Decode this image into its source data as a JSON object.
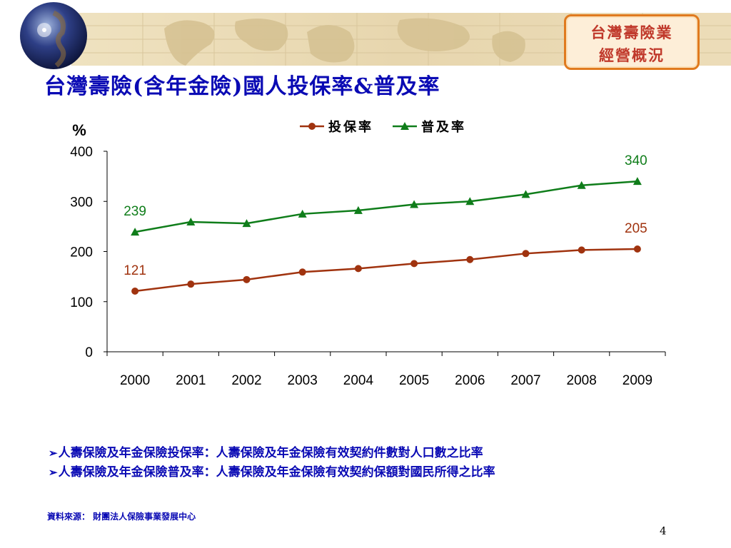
{
  "header": {
    "badge_line1": "台灣壽險業",
    "badge_line2": "經營概況"
  },
  "title": "台灣壽險(含年金險)國人投保率&普及率",
  "notes": [
    "人壽保險及年金保險投保率：人壽保險及年金保險有效契約件數對人口數之比率",
    "人壽保險及年金保險普及率：人壽保險及年金保險有效契約保額對國民所得之比率"
  ],
  "source": "資料來源： 財團法人保險事業發展中心",
  "page_number": "4",
  "colors": {
    "title": "#0a0ab4",
    "series1": "#a0330f",
    "series2": "#0f7d1a",
    "badge_border": "#e07a1f"
  },
  "chart_data": {
    "type": "line",
    "ylabel": "%",
    "ylim": [
      0,
      400
    ],
    "yticks": [
      0,
      100,
      200,
      300,
      400
    ],
    "categories": [
      "2000",
      "2001",
      "2002",
      "2003",
      "2004",
      "2005",
      "2006",
      "2007",
      "2008",
      "2009"
    ],
    "legend": "top",
    "grid": false,
    "series": [
      {
        "name": "投保率",
        "marker": "circle",
        "color": "#a0330f",
        "values": [
          121,
          135,
          144,
          159,
          166,
          176,
          184,
          196,
          203,
          205
        ],
        "labels": [
          {
            "index": 0,
            "text": "121"
          },
          {
            "index": 9,
            "text": "205"
          }
        ]
      },
      {
        "name": "普及率",
        "marker": "triangle",
        "color": "#0f7d1a",
        "values": [
          239,
          259,
          256,
          275,
          282,
          294,
          300,
          314,
          332,
          340
        ],
        "labels": [
          {
            "index": 0,
            "text": "239"
          },
          {
            "index": 9,
            "text": "340"
          }
        ]
      }
    ]
  }
}
